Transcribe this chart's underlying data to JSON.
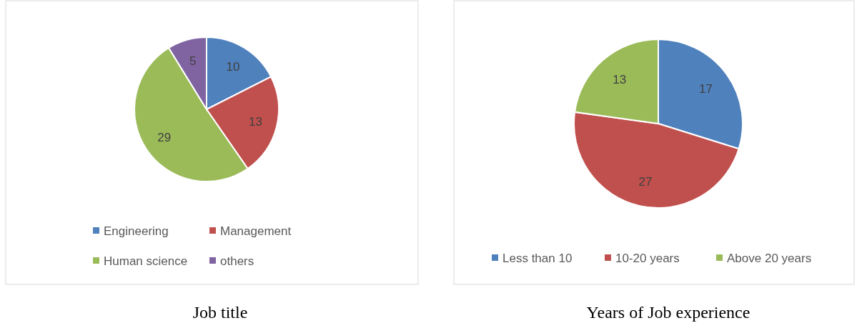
{
  "chart_data": [
    {
      "type": "pie",
      "title": "Job title",
      "categories": [
        "Engineering",
        "Management",
        "Human science",
        "others"
      ],
      "values": [
        10,
        13,
        29,
        5
      ],
      "colors": [
        "#4f81bd",
        "#c0504d",
        "#9bbb59",
        "#8064a2"
      ],
      "data_labels": true,
      "legend": "bottom"
    },
    {
      "type": "pie",
      "title": "Years of Job experience",
      "categories": [
        "Less than 10",
        "10-20 years",
        "Above 20 years"
      ],
      "values": [
        17,
        27,
        13
      ],
      "colors": [
        "#4f81bd",
        "#c0504d",
        "#9bbb59"
      ],
      "data_labels": true,
      "legend": "bottom"
    }
  ]
}
